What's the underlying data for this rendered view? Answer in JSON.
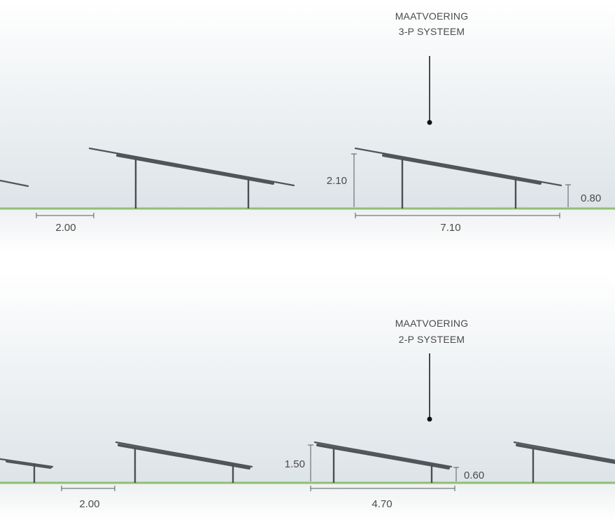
{
  "diagrams": [
    {
      "id": "3p",
      "title_lines": [
        "MAATVOERING",
        "3-P SYSTEEM"
      ],
      "row_spacing": "2.00",
      "high_height": "2.10",
      "low_height": "0.80",
      "panel_width": "7.10"
    },
    {
      "id": "2p",
      "title_lines": [
        "MAATVOERING",
        "2-P SYSTEEM"
      ],
      "row_spacing": "2.00",
      "high_height": "1.50",
      "low_height": "0.60",
      "panel_width": "4.70"
    }
  ],
  "colors": {
    "sky_top": "#ffffff",
    "sky_bottom": "#dfe6ea",
    "ground": "#8fbf74",
    "structure": "#4a4f54",
    "text": "#4a4a4a"
  }
}
